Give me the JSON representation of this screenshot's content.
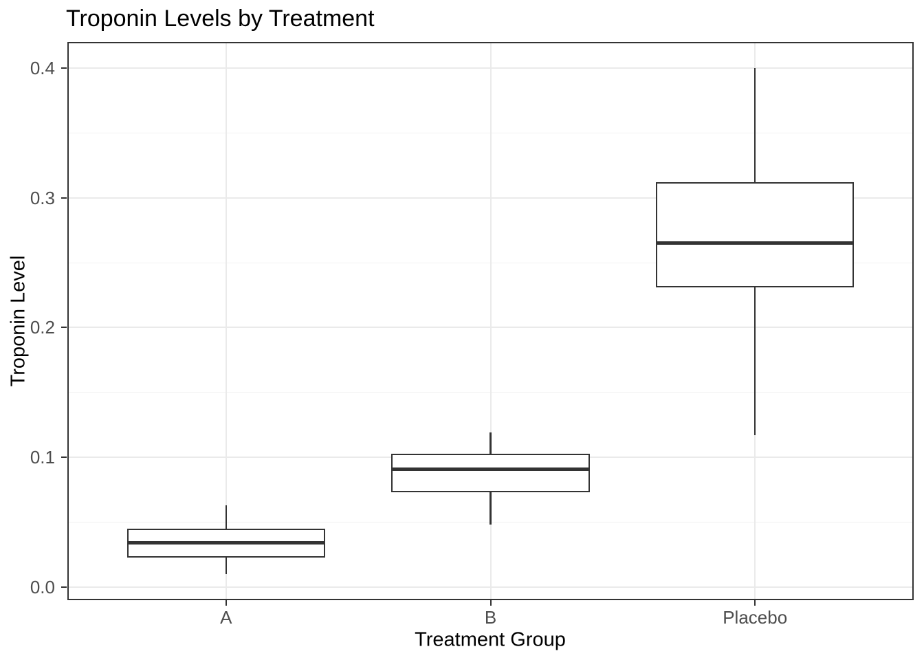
{
  "chart_data": {
    "type": "boxplot",
    "title": "Troponin Levels by Treatment",
    "xlabel": "Treatment Group",
    "ylabel": "Troponin Level",
    "categories": [
      "A",
      "B",
      "Placebo"
    ],
    "series": [
      {
        "name": "A",
        "min": 0.01,
        "q1": 0.023,
        "median": 0.034,
        "q3": 0.045,
        "max": 0.063
      },
      {
        "name": "B",
        "min": 0.048,
        "q1": 0.073,
        "median": 0.091,
        "q3": 0.103,
        "max": 0.119
      },
      {
        "name": "Placebo",
        "min": 0.117,
        "q1": 0.231,
        "median": 0.265,
        "q3": 0.312,
        "max": 0.4
      }
    ],
    "yticks": {
      "values": [
        0,
        0.1,
        0.2,
        0.3,
        0.4
      ],
      "labels": [
        "0.0",
        "0.1",
        "0.2",
        "0.3",
        "0.4"
      ]
    },
    "ylim": [
      -0.01,
      0.42
    ],
    "grid": {
      "major_horizontal": true,
      "minor_horizontal": true,
      "major_vertical_at_categories": true
    },
    "legend": "none",
    "colors": {
      "box_line": "#333333",
      "panel_border": "#333333",
      "grid_major": "#eaeaea",
      "grid_minor": "#f1f1f1",
      "tick_label": "#4d4d4d",
      "axis_title": "#000000",
      "title": "#000000",
      "background": "#ffffff"
    }
  }
}
